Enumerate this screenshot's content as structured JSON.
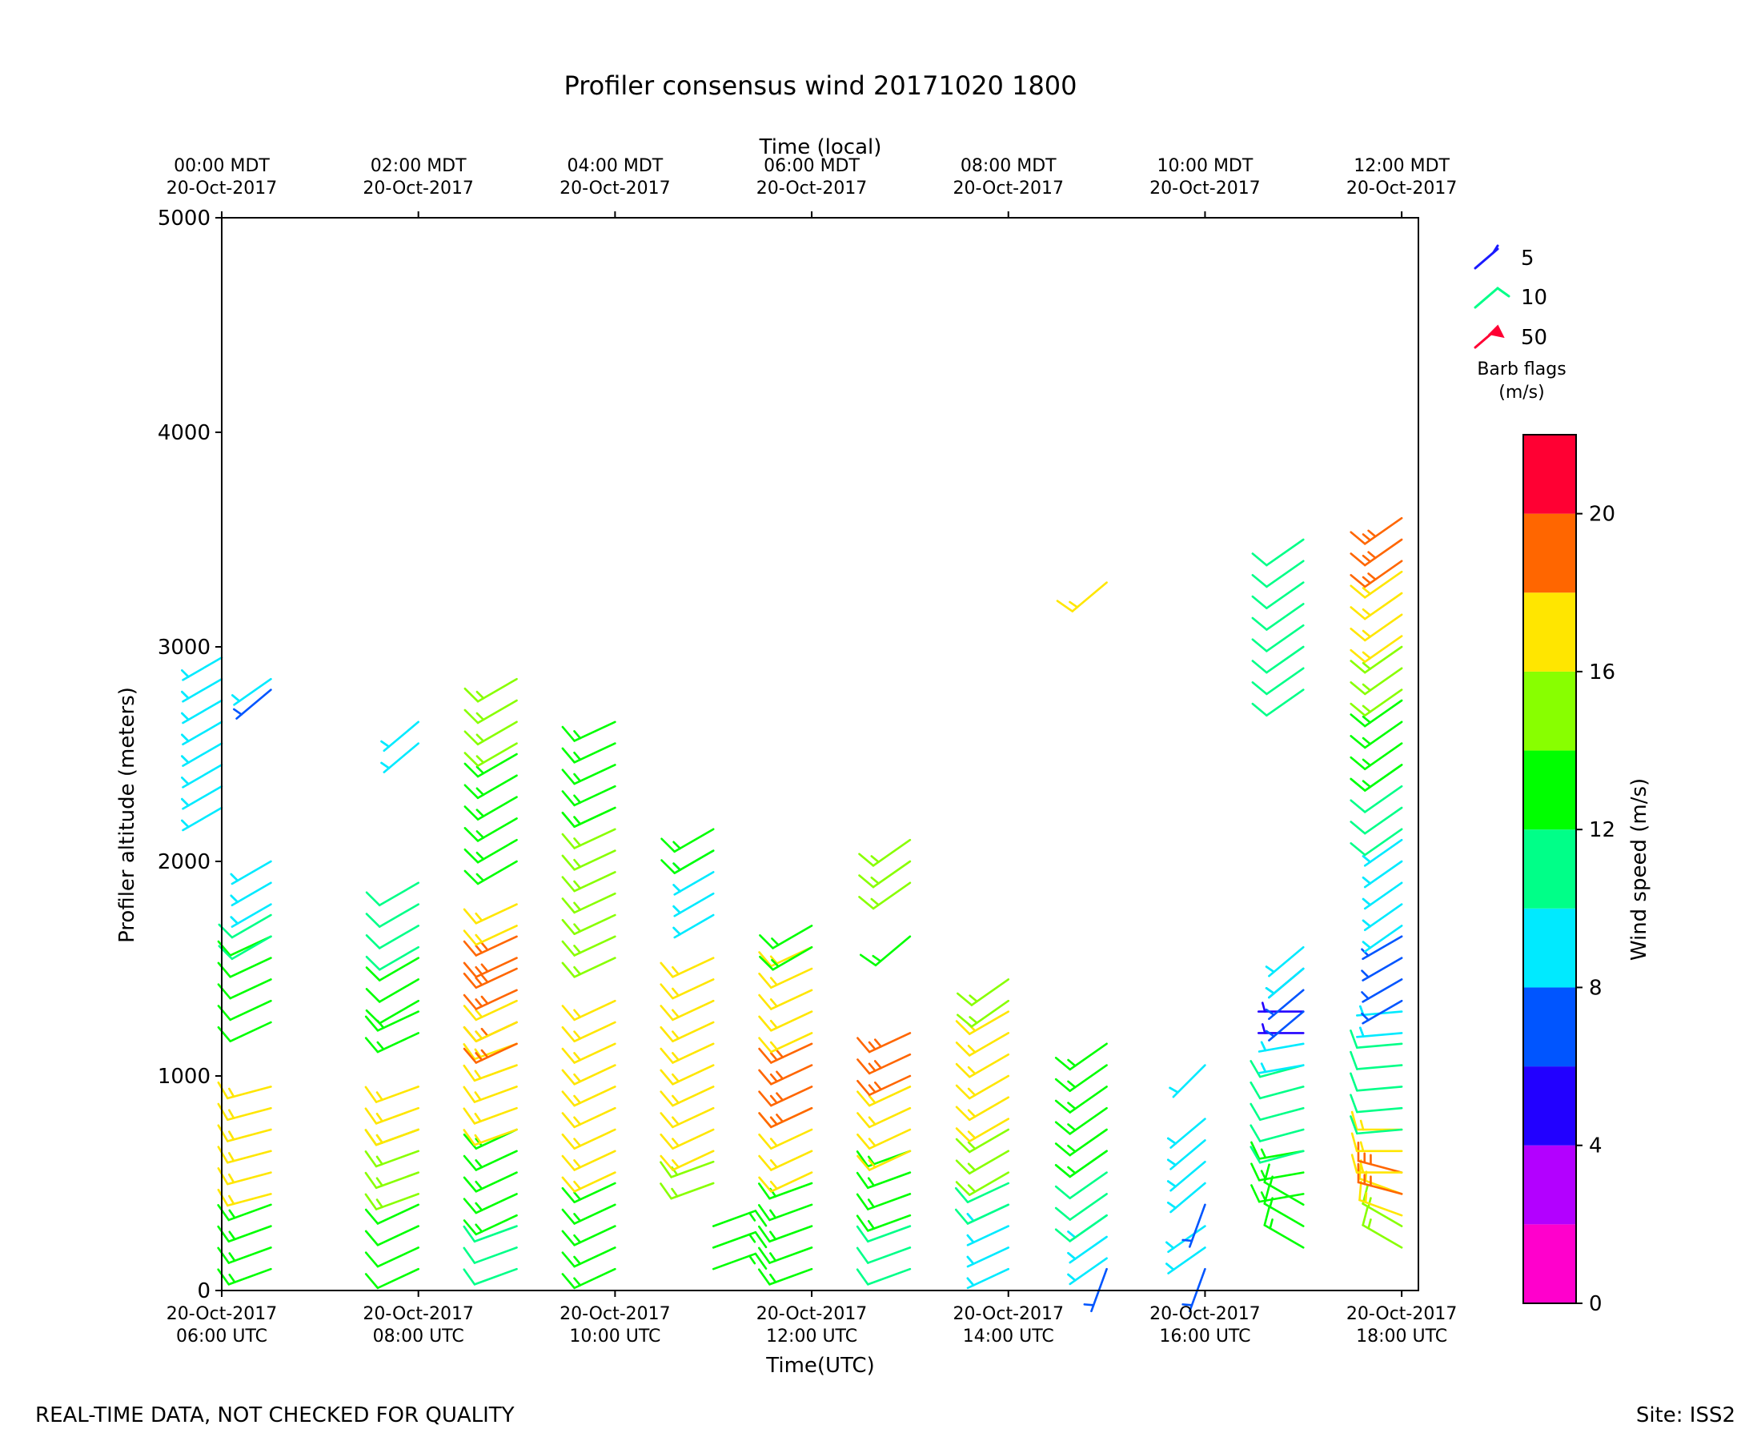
{
  "chart_data": {
    "type": "wind_barbs",
    "title": "Profiler consensus wind 20171020 1800",
    "xlabel": "Time(UTC)",
    "x2label": "Time (local)",
    "ylabel": "Profiler altitude (meters)",
    "ylim": [
      0,
      5000
    ],
    "yticks": [
      0,
      1000,
      2000,
      3000,
      4000,
      5000
    ],
    "xlim_hours": [
      6,
      18.17
    ],
    "utc_ticks": [
      {
        "hour": 6,
        "date": "20-Oct-2017",
        "time": "06:00 UTC"
      },
      {
        "hour": 8,
        "date": "20-Oct-2017",
        "time": "08:00 UTC"
      },
      {
        "hour": 10,
        "date": "20-Oct-2017",
        "time": "10:00 UTC"
      },
      {
        "hour": 12,
        "date": "20-Oct-2017",
        "time": "12:00 UTC"
      },
      {
        "hour": 14,
        "date": "20-Oct-2017",
        "time": "14:00 UTC"
      },
      {
        "hour": 16,
        "date": "20-Oct-2017",
        "time": "16:00 UTC"
      },
      {
        "hour": 18,
        "date": "20-Oct-2017",
        "time": "18:00 UTC"
      }
    ],
    "local_ticks": [
      {
        "hour": 6,
        "time": "00:00 MDT",
        "date": "20-Oct-2017"
      },
      {
        "hour": 8,
        "time": "02:00 MDT",
        "date": "20-Oct-2017"
      },
      {
        "hour": 10,
        "time": "04:00 MDT",
        "date": "20-Oct-2017"
      },
      {
        "hour": 12,
        "time": "06:00 MDT",
        "date": "20-Oct-2017"
      },
      {
        "hour": 14,
        "time": "08:00 MDT",
        "date": "20-Oct-2017"
      },
      {
        "hour": 16,
        "time": "10:00 MDT",
        "date": "20-Oct-2017"
      },
      {
        "hour": 18,
        "time": "12:00 MDT",
        "date": "20-Oct-2017"
      }
    ],
    "colorbar": {
      "label": "Wind speed (m/s)",
      "range": [
        0,
        22
      ],
      "bins": [
        {
          "from": 0,
          "to": 2,
          "color": "#ff00cc"
        },
        {
          "from": 2,
          "to": 4,
          "color": "#b300ff"
        },
        {
          "from": 4,
          "to": 6,
          "color": "#2200ff"
        },
        {
          "from": 6,
          "to": 8,
          "color": "#0055ff"
        },
        {
          "from": 8,
          "to": 10,
          "color": "#00eaff"
        },
        {
          "from": 10,
          "to": 12,
          "color": "#00ff88"
        },
        {
          "from": 12,
          "to": 14,
          "color": "#00ff00"
        },
        {
          "from": 14,
          "to": 16,
          "color": "#88ff00"
        },
        {
          "from": 16,
          "to": 18,
          "color": "#ffe600"
        },
        {
          "from": 18,
          "to": 20,
          "color": "#ff6600"
        },
        {
          "from": 20,
          "to": 22,
          "color": "#ff0033"
        }
      ],
      "ticks": [
        0,
        4,
        8,
        12,
        16,
        20
      ]
    },
    "barb_legend": {
      "title_line1": "Barb flags",
      "title_line2": "(m/s)",
      "items": [
        {
          "label": "5",
          "color": "#1a1aff",
          "kind": "half"
        },
        {
          "label": "10",
          "color": "#00ff88",
          "kind": "full"
        },
        {
          "label": "50",
          "color": "#ff0033",
          "kind": "flag"
        }
      ]
    },
    "columns": [
      {
        "hour": 6.0,
        "segments": [
          {
            "from": 2250,
            "to": 2950,
            "spd": 9,
            "dir": 240
          }
        ]
      },
      {
        "hour": 6.5,
        "segments": [
          {
            "from": 100,
            "to": 450,
            "spd": 13,
            "dir": 250
          },
          {
            "from": 450,
            "to": 950,
            "spd": 17,
            "dir": 255
          },
          {
            "from": 1250,
            "to": 1650,
            "spd": 12,
            "dir": 245
          },
          {
            "from": 1650,
            "to": 1800,
            "spd": 11,
            "dir": 240
          },
          {
            "from": 1800,
            "to": 2050,
            "spd": 9,
            "dir": 240
          },
          {
            "from": 2800,
            "to": 2850,
            "spd": 7,
            "dir": 230
          },
          {
            "from": 2850,
            "to": 2900,
            "spd": 9,
            "dir": 235
          }
        ]
      },
      {
        "hour": 8.0,
        "segments": [
          {
            "from": 100,
            "to": 450,
            "spd": 12,
            "dir": 245
          },
          {
            "from": 450,
            "to": 750,
            "spd": 15,
            "dir": 250
          },
          {
            "from": 750,
            "to": 950,
            "spd": 17,
            "dir": 250
          },
          {
            "from": 1200,
            "to": 1350,
            "spd": 13,
            "dir": 245
          },
          {
            "from": 1350,
            "to": 1600,
            "spd": 12,
            "dir": 240
          },
          {
            "from": 1600,
            "to": 1950,
            "spd": 11,
            "dir": 240
          },
          {
            "from": 2550,
            "to": 2650,
            "spd": 9,
            "dir": 230
          }
        ]
      },
      {
        "hour": 9.0,
        "segments": [
          {
            "from": 100,
            "to": 350,
            "spd": 11,
            "dir": 250
          },
          {
            "from": 350,
            "to": 750,
            "spd": 13,
            "dir": 245
          },
          {
            "from": 750,
            "to": 1150,
            "spd": 17,
            "dir": 250
          },
          {
            "from": 1150,
            "to": 1250,
            "spd": 19,
            "dir": 245
          },
          {
            "from": 1250,
            "to": 1400,
            "spd": 16,
            "dir": 245
          },
          {
            "from": 1400,
            "to": 1550,
            "spd": 19,
            "dir": 245
          },
          {
            "from": 1550,
            "to": 1700,
            "spd": 18,
            "dir": 245
          },
          {
            "from": 1700,
            "to": 1850,
            "spd": 17,
            "dir": 245
          },
          {
            "from": 2000,
            "to": 2550,
            "spd": 13,
            "dir": 240
          },
          {
            "from": 2550,
            "to": 2850,
            "spd": 14,
            "dir": 240
          }
        ]
      },
      {
        "hour": 10.0,
        "segments": [
          {
            "from": 100,
            "to": 550,
            "spd": 13,
            "dir": 245
          },
          {
            "from": 550,
            "to": 1350,
            "spd": 17,
            "dir": 245
          },
          {
            "from": 1550,
            "to": 2250,
            "spd": 15,
            "dir": 245
          },
          {
            "from": 2250,
            "to": 2650,
            "spd": 13,
            "dir": 245
          }
        ]
      },
      {
        "hour": 11.0,
        "segments": [
          {
            "from": 100,
            "to": 300,
            "spd": 13,
            "dir": 70
          },
          {
            "from": 500,
            "to": 650,
            "spd": 15,
            "dir": 250
          },
          {
            "from": 650,
            "to": 1550,
            "spd": 17,
            "dir": 245
          },
          {
            "from": 1750,
            "to": 2050,
            "spd": 9,
            "dir": 240
          },
          {
            "from": 2050,
            "to": 2150,
            "spd": 13,
            "dir": 240
          }
        ]
      },
      {
        "hour": 12.0,
        "segments": [
          {
            "from": 100,
            "to": 550,
            "spd": 13,
            "dir": 250
          },
          {
            "from": 550,
            "to": 850,
            "spd": 17,
            "dir": 245
          },
          {
            "from": 850,
            "to": 1200,
            "spd": 19,
            "dir": 245
          },
          {
            "from": 1200,
            "to": 1600,
            "spd": 17,
            "dir": 245
          },
          {
            "from": 1600,
            "to": 1700,
            "spd": 13,
            "dir": 240
          }
        ]
      },
      {
        "hour": 13.0,
        "segments": [
          {
            "from": 100,
            "to": 350,
            "spd": 11,
            "dir": 250
          },
          {
            "from": 350,
            "to": 650,
            "spd": 13,
            "dir": 250
          },
          {
            "from": 650,
            "to": 1000,
            "spd": 17,
            "dir": 245
          },
          {
            "from": 1000,
            "to": 1250,
            "spd": 19,
            "dir": 245
          },
          {
            "from": 1650,
            "to": 1700,
            "spd": 13,
            "dir": 230
          },
          {
            "from": 1900,
            "to": 2100,
            "spd": 15,
            "dir": 235
          }
        ]
      },
      {
        "hour": 14.0,
        "segments": [
          {
            "from": 100,
            "to": 400,
            "spd": 9,
            "dir": 245
          },
          {
            "from": 400,
            "to": 550,
            "spd": 11,
            "dir": 245
          },
          {
            "from": 550,
            "to": 800,
            "spd": 15,
            "dir": 240
          },
          {
            "from": 800,
            "to": 1350,
            "spd": 17,
            "dir": 240
          },
          {
            "from": 1350,
            "to": 1500,
            "spd": 15,
            "dir": 235
          }
        ]
      },
      {
        "hour": 15.0,
        "segments": [
          {
            "from": 100,
            "to": 150,
            "spd": 7,
            "dir": 200
          },
          {
            "from": 150,
            "to": 350,
            "spd": 9,
            "dir": 235
          },
          {
            "from": 350,
            "to": 650,
            "spd": 11,
            "dir": 235
          },
          {
            "from": 650,
            "to": 1150,
            "spd": 13,
            "dir": 235
          },
          {
            "from": 3300,
            "to": 3350,
            "spd": 17,
            "dir": 230
          }
        ]
      },
      {
        "hour": 16.0,
        "segments": [
          {
            "from": 100,
            "to": 150,
            "spd": 7,
            "dir": 200
          },
          {
            "from": 200,
            "to": 350,
            "spd": 9,
            "dir": 235
          },
          {
            "from": 400,
            "to": 450,
            "spd": 7,
            "dir": 200
          },
          {
            "from": 500,
            "to": 800,
            "spd": 9,
            "dir": 230
          },
          {
            "from": 1050,
            "to": 1100,
            "spd": 9,
            "dir": 225
          }
        ]
      },
      {
        "hour": 17.0,
        "segments": [
          {
            "from": 200,
            "to": 450,
            "spd": 13,
            "dir": 300
          },
          {
            "from": 450,
            "to": 650,
            "spd": 13,
            "dir": 260
          },
          {
            "from": 650,
            "to": 1050,
            "spd": 11,
            "dir": 255
          },
          {
            "from": 1050,
            "to": 1200,
            "spd": 9,
            "dir": 260
          },
          {
            "from": 1200,
            "to": 1300,
            "spd": 5,
            "dir": 270
          },
          {
            "from": 1300,
            "to": 1500,
            "spd": 7,
            "dir": 230
          },
          {
            "from": 1500,
            "to": 1600,
            "spd": 9,
            "dir": 230
          },
          {
            "from": 2800,
            "to": 3550,
            "spd": 11,
            "dir": 235
          }
        ]
      },
      {
        "hour": 18.0,
        "segments": [
          {
            "from": 200,
            "to": 350,
            "spd": 15,
            "dir": 300
          },
          {
            "from": 350,
            "to": 450,
            "spd": 17,
            "dir": 290
          },
          {
            "from": 450,
            "to": 550,
            "spd": 19,
            "dir": 285
          },
          {
            "from": 550,
            "to": 750,
            "spd": 17,
            "dir": 270
          },
          {
            "from": 750,
            "to": 1200,
            "spd": 11,
            "dir": 265
          },
          {
            "from": 1200,
            "to": 1350,
            "spd": 9,
            "dir": 265
          },
          {
            "from": 1350,
            "to": 1700,
            "spd": 7,
            "dir": 240
          },
          {
            "from": 1700,
            "to": 2150,
            "spd": 9,
            "dir": 235
          },
          {
            "from": 2150,
            "to": 2450,
            "spd": 11,
            "dir": 235
          },
          {
            "from": 2450,
            "to": 2800,
            "spd": 13,
            "dir": 235
          },
          {
            "from": 2800,
            "to": 3050,
            "spd": 15,
            "dir": 235
          },
          {
            "from": 3050,
            "to": 3400,
            "spd": 17,
            "dir": 235
          },
          {
            "from": 3400,
            "to": 3600,
            "spd": 19,
            "dir": 235
          }
        ]
      }
    ]
  },
  "footer": {
    "disclaimer": "REAL-TIME DATA, NOT CHECKED FOR QUALITY",
    "site": "Site: ISS2"
  }
}
